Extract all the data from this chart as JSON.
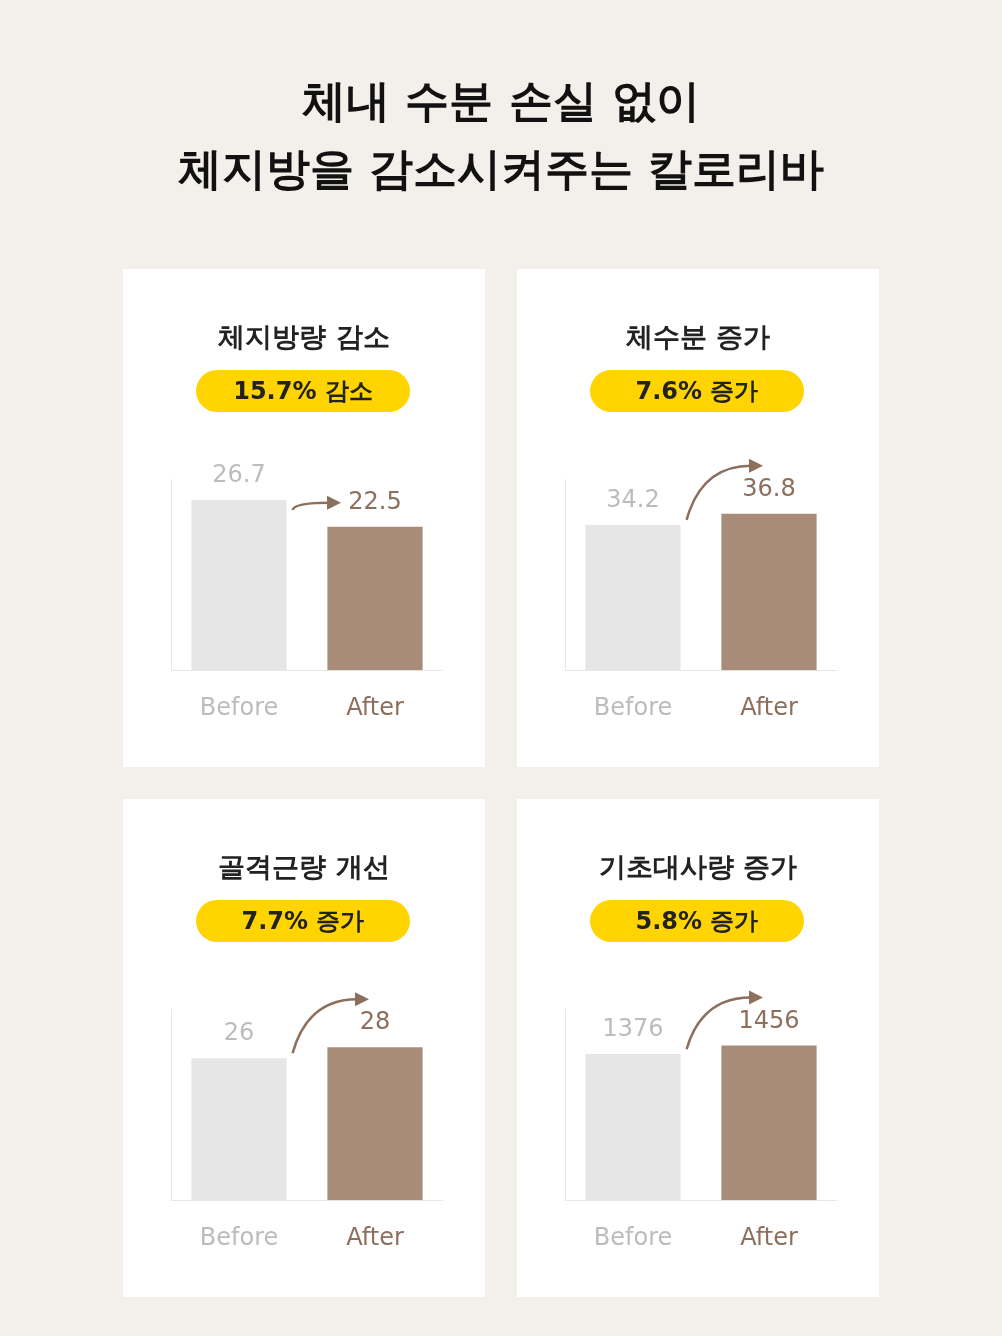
{
  "chart_data": [
    {
      "type": "other",
      "title": "체내 수분 손실 없이\n체지방을 감소시켜주는 칼로리바"
    },
    {
      "type": "bar",
      "title": "체지방량 감소",
      "subtitle": "15.7% 감소",
      "categories": [
        "Before",
        "After"
      ],
      "values": [
        26.7,
        22.5
      ],
      "colors": [
        "#e6e6e6",
        "#a88c79"
      ],
      "data_labels": true
    },
    {
      "type": "bar",
      "title": "체수분 증가",
      "subtitle": "7.6% 증가",
      "categories": [
        "Before",
        "After"
      ],
      "values": [
        34.2,
        36.8
      ],
      "colors": [
        "#e6e6e6",
        "#a88c79"
      ],
      "data_labels": true
    },
    {
      "type": "bar",
      "title": "골격근량 개선",
      "subtitle": "7.7% 증가",
      "categories": [
        "Before",
        "After"
      ],
      "values": [
        26,
        28
      ],
      "colors": [
        "#e6e6e6",
        "#a88c79"
      ],
      "data_labels": true
    },
    {
      "type": "bar",
      "title": "기초대사량 증가",
      "subtitle": "5.8% 증가",
      "categories": [
        "Before",
        "After"
      ],
      "values": [
        1376,
        1456
      ],
      "colors": [
        "#e6e6e6",
        "#a88c79"
      ],
      "data_labels": true
    }
  ]
}
